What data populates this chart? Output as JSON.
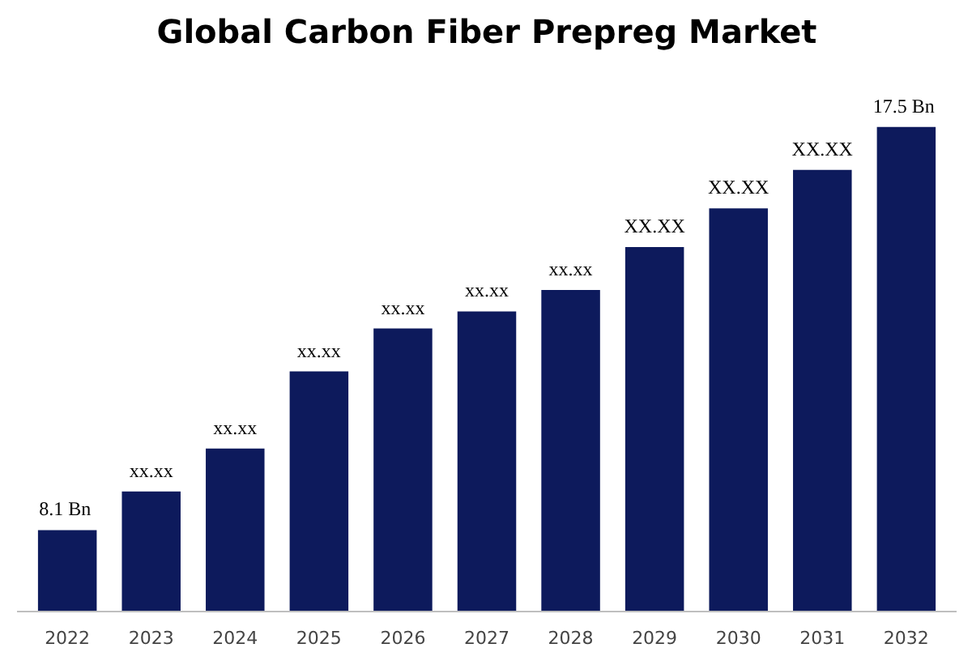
{
  "chart_data": {
    "type": "bar",
    "title": "Global Carbon Fiber Prepreg Market",
    "categories": [
      "2022",
      "2023",
      "2024",
      "2025",
      "2026",
      "2027",
      "2028",
      "2029",
      "2030",
      "2031",
      "2032"
    ],
    "values": [
      8.1,
      9.0,
      10.0,
      11.8,
      12.8,
      13.2,
      13.7,
      14.7,
      15.6,
      16.5,
      17.5
    ],
    "value_labels": [
      "8.1  Bn",
      "xx.xx",
      "xx.xx",
      "xx.xx",
      "xx.xx",
      "xx.xx",
      "xx.xx",
      "XX.XX",
      "XX.XX",
      "XX.XX",
      "17.5  Bn"
    ],
    "color": "#0d1a5c",
    "ylim": [
      6.2,
      17.5
    ]
  }
}
